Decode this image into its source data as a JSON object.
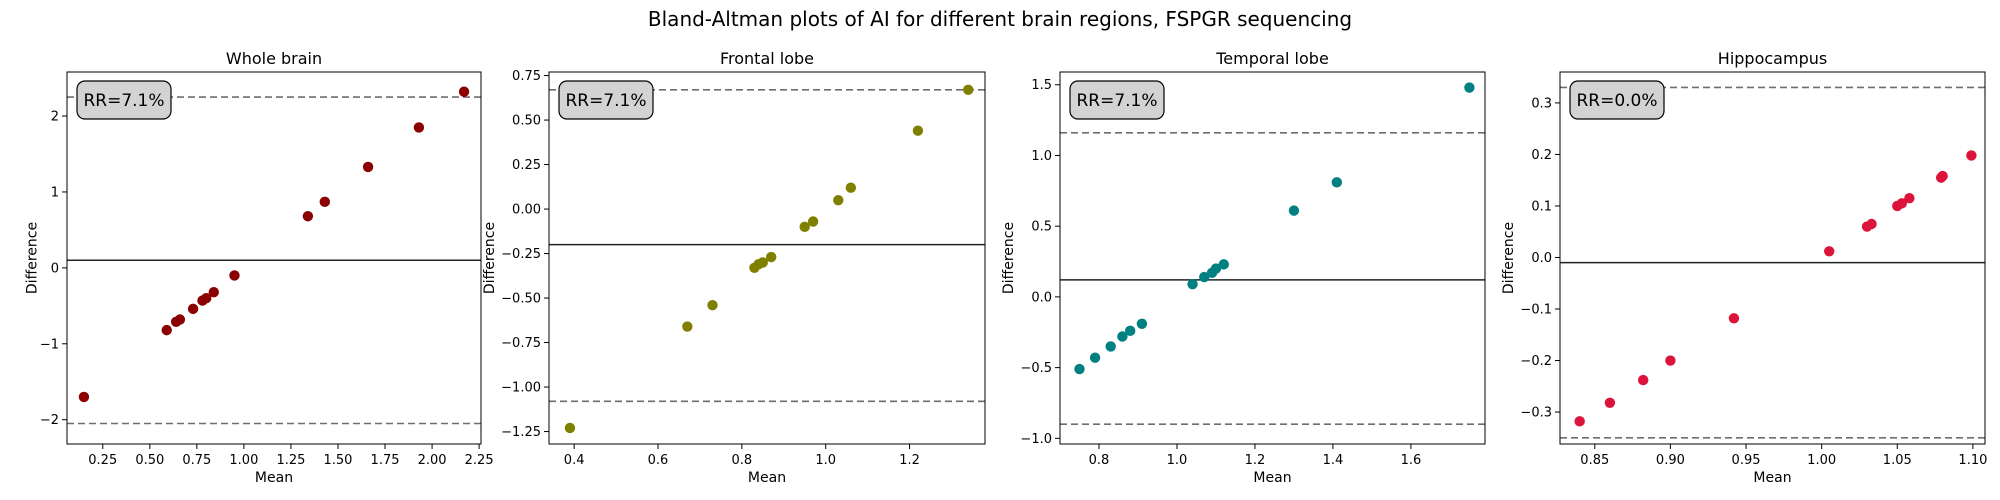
{
  "figure": {
    "title": "Bland-Altman plots of AI for different brain regions, FSPGR sequencing"
  },
  "chart_data": [
    {
      "type": "scatter",
      "title": "Whole brain",
      "xlabel": "Mean",
      "ylabel": "Difference",
      "color": "#8b0000",
      "xlim": [
        0.06,
        2.26
      ],
      "ylim": [
        -2.32,
        2.58
      ],
      "xticks": [
        0.25,
        0.5,
        0.75,
        1.0,
        1.25,
        1.5,
        1.75,
        2.0,
        2.25
      ],
      "xtick_labels": [
        "0.25",
        "0.50",
        "0.75",
        "1.00",
        "1.25",
        "1.50",
        "1.75",
        "2.00",
        "2.25"
      ],
      "yticks": [
        -2,
        -1,
        0,
        1,
        2
      ],
      "ytick_labels": [
        "−2",
        "−1",
        "0",
        "1",
        "2"
      ],
      "mean_diff": 0.1,
      "loa": [
        -2.05,
        2.25
      ],
      "rr_label": "RR=7.1%",
      "x": [
        0.15,
        0.59,
        0.64,
        0.66,
        0.73,
        0.78,
        0.8,
        0.84,
        0.95,
        1.34,
        1.43,
        1.66,
        1.93,
        2.17
      ],
      "y": [
        -1.7,
        -0.82,
        -0.71,
        -0.68,
        -0.54,
        -0.43,
        -0.4,
        -0.32,
        -0.1,
        0.68,
        0.87,
        1.33,
        1.85,
        2.32
      ]
    },
    {
      "type": "scatter",
      "title": "Frontal lobe",
      "xlabel": "Mean",
      "ylabel": "Difference",
      "color": "#808000",
      "xlim": [
        0.34,
        1.38
      ],
      "ylim": [
        -1.32,
        0.77
      ],
      "xticks": [
        0.4,
        0.6,
        0.8,
        1.0,
        1.2
      ],
      "xtick_labels": [
        "0.4",
        "0.6",
        "0.8",
        "1.0",
        "1.2"
      ],
      "yticks": [
        -1.25,
        -1.0,
        -0.75,
        -0.5,
        -0.25,
        0.0,
        0.25,
        0.5,
        0.75
      ],
      "ytick_labels": [
        "−1.25",
        "−1.00",
        "−0.75",
        "−0.50",
        "−0.25",
        "0.00",
        "0.25",
        "0.50",
        "0.75"
      ],
      "mean_diff": -0.2,
      "loa": [
        -1.08,
        0.67
      ],
      "rr_label": "RR=7.1%",
      "x": [
        0.39,
        0.67,
        0.73,
        0.83,
        0.84,
        0.85,
        0.87,
        0.95,
        0.97,
        1.03,
        1.06,
        1.22,
        1.34
      ],
      "y": [
        -1.23,
        -0.66,
        -0.54,
        -0.33,
        -0.31,
        -0.3,
        -0.27,
        -0.1,
        -0.07,
        0.05,
        0.12,
        0.44,
        0.67
      ]
    },
    {
      "type": "scatter",
      "title": "Temporal lobe",
      "xlabel": "Mean",
      "ylabel": "Difference",
      "color": "#008080",
      "xlim": [
        0.7,
        1.79
      ],
      "ylim": [
        -1.04,
        1.59
      ],
      "xticks": [
        0.8,
        1.0,
        1.2,
        1.4,
        1.6
      ],
      "xtick_labels": [
        "0.8",
        "1.0",
        "1.2",
        "1.4",
        "1.6"
      ],
      "yticks": [
        -1.0,
        -0.5,
        0.0,
        0.5,
        1.0,
        1.5
      ],
      "ytick_labels": [
        "−1.0",
        "−0.5",
        "0.0",
        "0.5",
        "1.0",
        "1.5"
      ],
      "mean_diff": 0.12,
      "loa": [
        -0.9,
        1.16
      ],
      "rr_label": "RR=7.1%",
      "x": [
        0.75,
        0.79,
        0.83,
        0.86,
        0.88,
        0.91,
        1.04,
        1.07,
        1.09,
        1.1,
        1.12,
        1.3,
        1.41,
        1.75
      ],
      "y": [
        -0.51,
        -0.43,
        -0.35,
        -0.28,
        -0.24,
        -0.19,
        0.09,
        0.14,
        0.17,
        0.2,
        0.23,
        0.61,
        0.81,
        1.48
      ]
    },
    {
      "type": "scatter",
      "title": "Hippocampus",
      "xlabel": "Mean",
      "ylabel": "Difference",
      "color": "#dc143c",
      "xlim": [
        0.827,
        1.108
      ],
      "ylim": [
        -0.362,
        0.36
      ],
      "xticks": [
        0.85,
        0.9,
        0.95,
        1.0,
        1.05,
        1.1
      ],
      "xtick_labels": [
        "0.85",
        "0.90",
        "0.95",
        "1.00",
        "1.05",
        "1.10"
      ],
      "yticks": [
        -0.3,
        -0.2,
        -0.1,
        0.0,
        0.1,
        0.2,
        0.3
      ],
      "ytick_labels": [
        "−0.3",
        "−0.2",
        "−0.1",
        "0.0",
        "0.1",
        "0.2",
        "0.3"
      ],
      "mean_diff": -0.01,
      "loa": [
        -0.35,
        0.33
      ],
      "rr_label": "RR=0.0%",
      "x": [
        0.84,
        0.86,
        0.882,
        0.9,
        0.942,
        1.005,
        1.03,
        1.033,
        1.05,
        1.053,
        1.058,
        1.079,
        1.08,
        1.099
      ],
      "y": [
        -0.318,
        -0.282,
        -0.238,
        -0.2,
        -0.118,
        0.012,
        0.06,
        0.065,
        0.1,
        0.105,
        0.115,
        0.155,
        0.158,
        0.198
      ]
    }
  ]
}
